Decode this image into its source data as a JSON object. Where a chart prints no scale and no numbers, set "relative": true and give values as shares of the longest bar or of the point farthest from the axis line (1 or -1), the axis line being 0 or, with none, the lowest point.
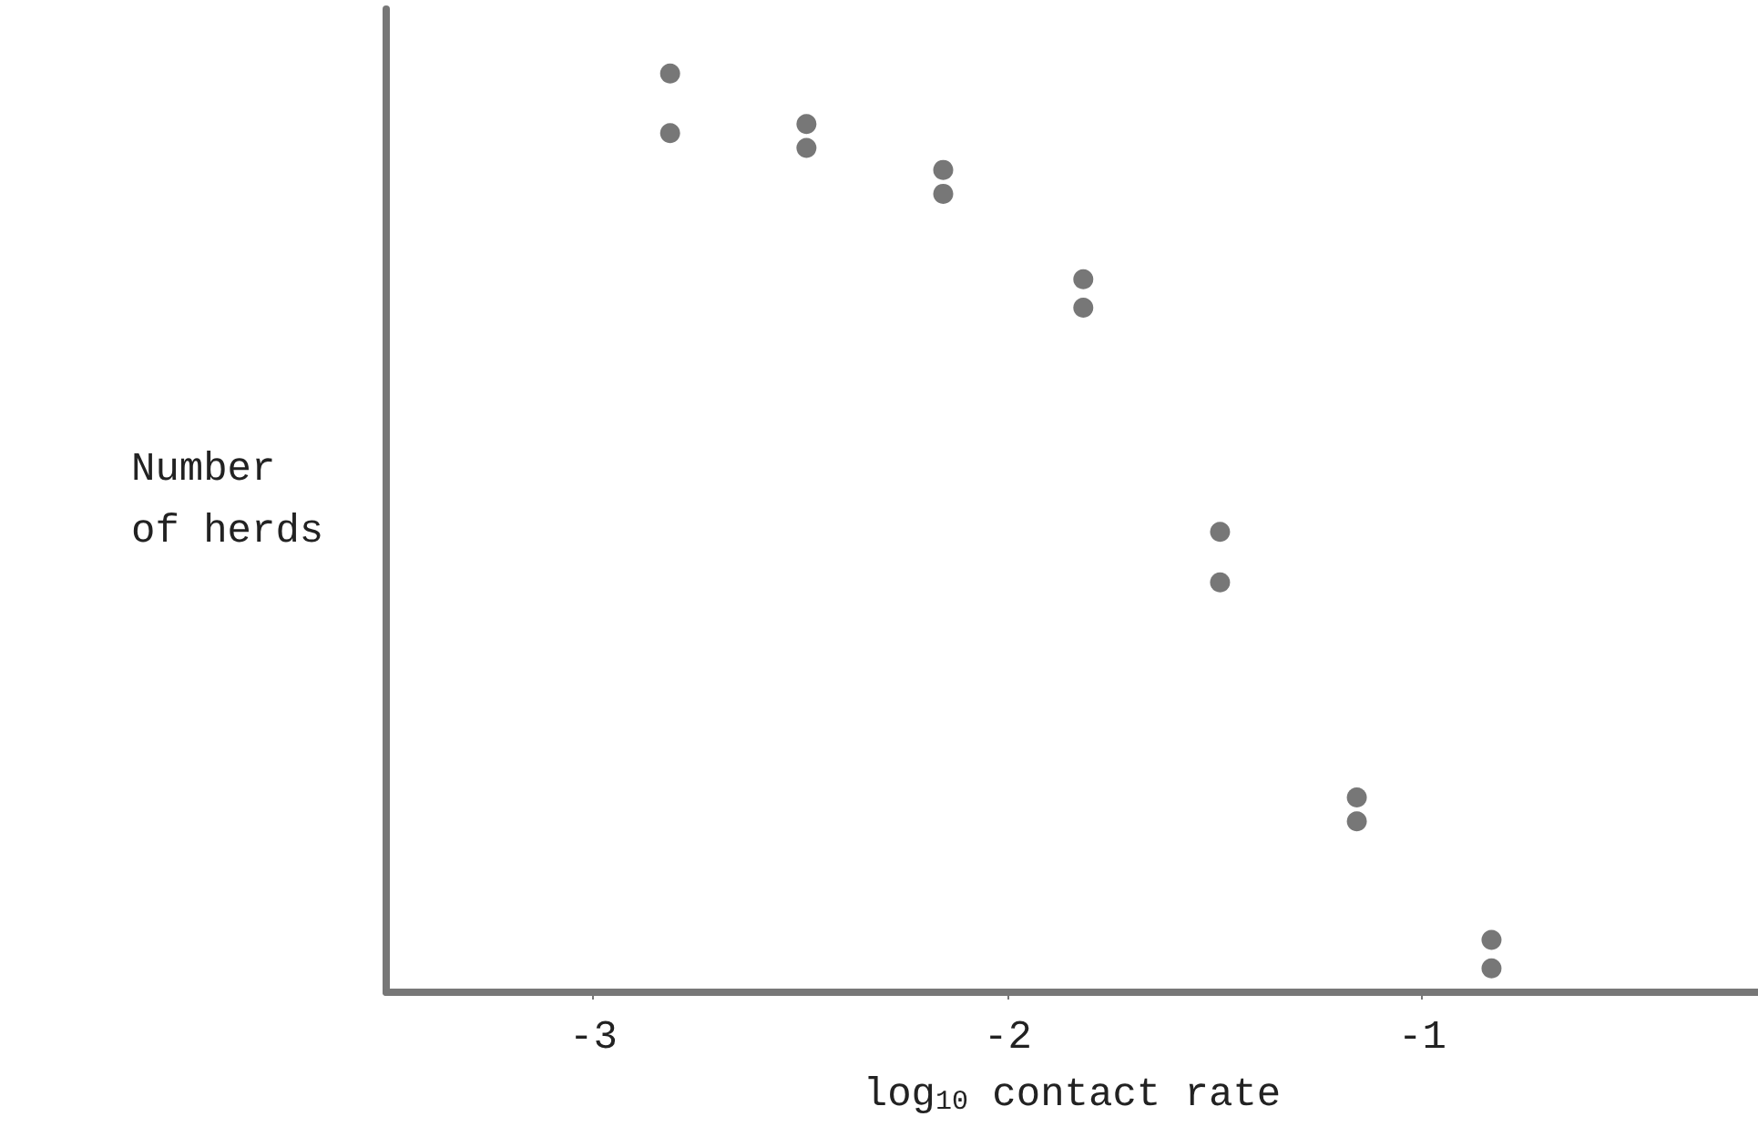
{
  "chart_data": {
    "type": "scatter",
    "xlabel": "log$_{10}$ contact rate",
    "ylabel": "Number\nof herds",
    "relative": true,
    "x": [
      -2.815,
      -2.815,
      -2.486,
      -2.486,
      -2.156,
      -2.156,
      -1.818,
      -1.818,
      -1.488,
      -1.488,
      -1.158,
      -1.158,
      -0.833,
      -0.833
    ],
    "values": [
      1,
      0.935,
      0.945,
      0.919,
      0.895,
      0.869,
      0.776,
      0.745,
      0.501,
      0.446,
      0.212,
      0.186,
      0.057,
      0.026
    ],
    "color": "#555555",
    "marker": "circle",
    "xlim": [
      -3.5,
      -0.19
    ],
    "xticks": [
      -3,
      -2,
      -1
    ]
  }
}
